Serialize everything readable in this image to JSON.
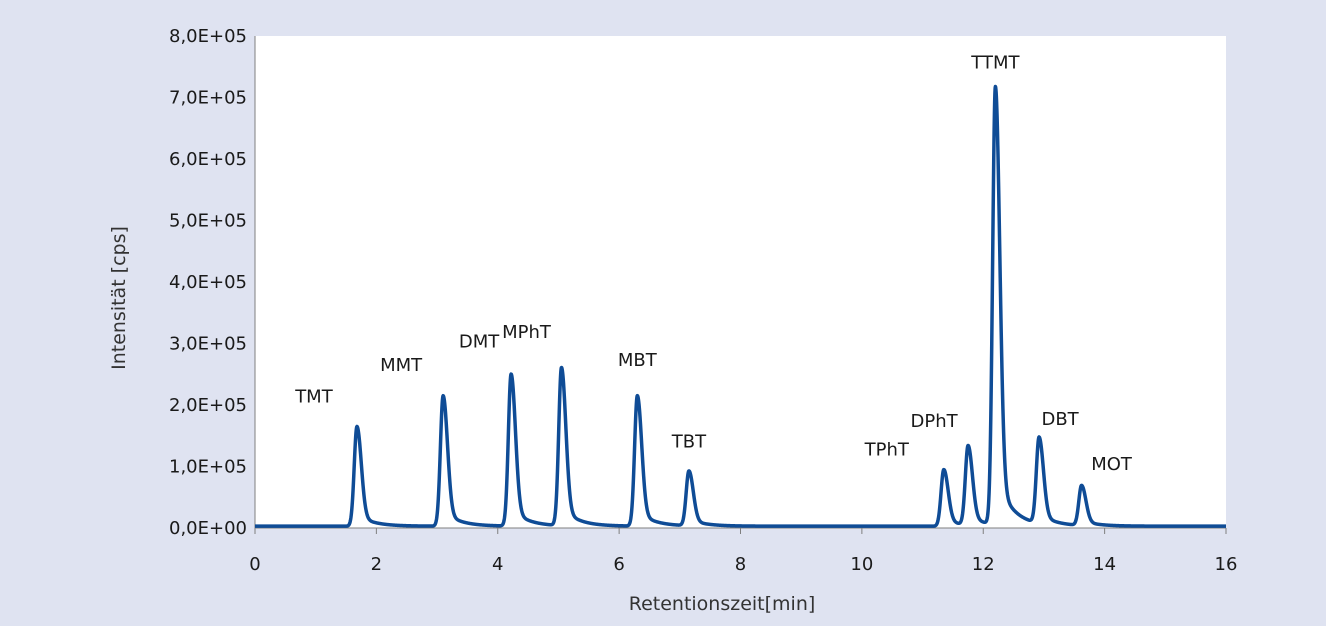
{
  "chart_data": {
    "type": "line",
    "title": "",
    "xlabel": "Retentionszeit[min]",
    "ylabel": "Intensität [cps]",
    "xlim": [
      0,
      16
    ],
    "ylim": [
      0,
      800000
    ],
    "x_ticks": [
      0,
      2,
      4,
      6,
      8,
      10,
      12,
      14,
      16
    ],
    "x_tick_labels": [
      "0",
      "2",
      "4",
      "6",
      "8",
      "10",
      "12",
      "14",
      "16"
    ],
    "y_ticks": [
      0,
      100000,
      200000,
      300000,
      400000,
      500000,
      600000,
      700000,
      800000
    ],
    "y_tick_labels": [
      "0,0E+00",
      "1,0E+05",
      "2,0E+05",
      "3,0E+05",
      "4,0E+05",
      "5,0E+05",
      "6,0E+05",
      "7,0E+05",
      "8,0E+05"
    ],
    "grid": false,
    "legend": "none",
    "line_color": "#0f4c96",
    "baseline": 3000,
    "series": [
      {
        "peaks": [
          {
            "label": "TMT",
            "x": 1.68,
            "y": 165000
          },
          {
            "label": "MMT",
            "x": 3.1,
            "y": 215000
          },
          {
            "label": "DMT",
            "x": 4.22,
            "y": 250000
          },
          {
            "label": "MPhT",
            "x": 5.05,
            "y": 260000
          },
          {
            "label": "MBT",
            "x": 6.3,
            "y": 215000
          },
          {
            "label": "TBT",
            "x": 7.15,
            "y": 92000
          },
          {
            "label": "TPhT",
            "x": 11.35,
            "y": 95000
          },
          {
            "label": "DPhT",
            "x": 11.75,
            "y": 132000
          },
          {
            "label": "TTMT",
            "x": 12.2,
            "y": 715000
          },
          {
            "label": "DBT",
            "x": 12.92,
            "y": 143000
          },
          {
            "label": "MOT",
            "x": 13.62,
            "y": 68000
          }
        ]
      }
    ]
  }
}
